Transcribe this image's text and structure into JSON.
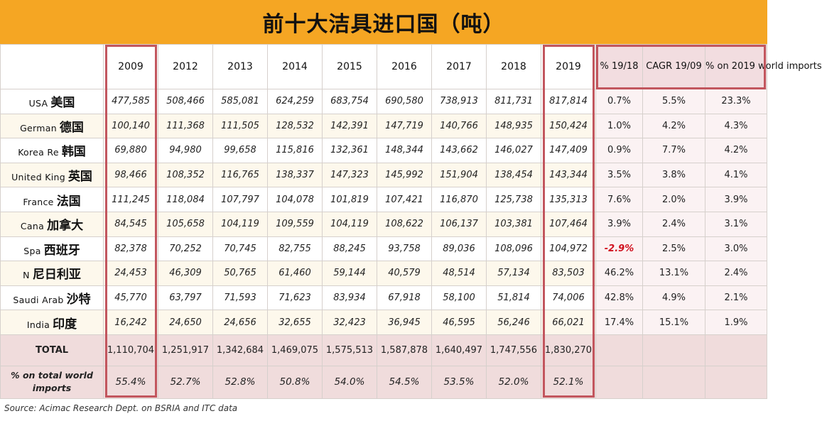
{
  "title": "前十大洁具进口国（吨）",
  "chart_data": {
    "type": "table",
    "title": "前十大洁具进口国（吨）",
    "columns": [
      "2009",
      "2012",
      "2013",
      "2014",
      "2015",
      "2016",
      "2017",
      "2018",
      "2019",
      "% 19/18",
      "CAGR 19/09",
      "% on 2019 world imports"
    ],
    "rows": [
      {
        "en": "USA",
        "cn": "美国",
        "values": [
          "477,585",
          "508,466",
          "585,081",
          "624,259",
          "683,754",
          "690,580",
          "738,913",
          "811,731",
          "817,814"
        ],
        "rates": [
          "0.7%",
          "5.5%",
          "23.3%"
        ]
      },
      {
        "en": "German",
        "cn": "德国",
        "values": [
          "100,140",
          "111,368",
          "111,505",
          "128,532",
          "142,391",
          "147,719",
          "140,766",
          "148,935",
          "150,424"
        ],
        "rates": [
          "1.0%",
          "4.2%",
          "4.3%"
        ]
      },
      {
        "en": "Korea Re",
        "cn": "韩国",
        "values": [
          "69,880",
          "94,980",
          "99,658",
          "115,816",
          "132,361",
          "148,344",
          "143,662",
          "146,027",
          "147,409"
        ],
        "rates": [
          "0.9%",
          "7.7%",
          "4.2%"
        ]
      },
      {
        "en": "United King",
        "cn": "英国",
        "values": [
          "98,466",
          "108,352",
          "116,765",
          "138,337",
          "147,323",
          "145,992",
          "151,904",
          "138,454",
          "143,344"
        ],
        "rates": [
          "3.5%",
          "3.8%",
          "4.1%"
        ]
      },
      {
        "en": "France",
        "cn": "法国",
        "values": [
          "111,245",
          "118,084",
          "107,797",
          "104,078",
          "101,819",
          "107,421",
          "116,870",
          "125,738",
          "135,313"
        ],
        "rates": [
          "7.6%",
          "2.0%",
          "3.9%"
        ]
      },
      {
        "en": "Cana",
        "cn": "加拿大",
        "values": [
          "84,545",
          "105,658",
          "104,119",
          "109,559",
          "104,119",
          "108,622",
          "106,137",
          "103,381",
          "107,464"
        ],
        "rates": [
          "3.9%",
          "2.4%",
          "3.1%"
        ]
      },
      {
        "en": "Spa",
        "cn": "西班牙",
        "values": [
          "82,378",
          "70,252",
          "70,745",
          "82,755",
          "88,245",
          "93,758",
          "89,036",
          "108,096",
          "104,972"
        ],
        "rates": [
          "-2.9%",
          "2.5%",
          "3.0%"
        ]
      },
      {
        "en": "N",
        "cn": "尼日利亚",
        "values": [
          "24,453",
          "46,309",
          "50,765",
          "61,460",
          "59,144",
          "40,579",
          "48,514",
          "57,134",
          "83,503"
        ],
        "rates": [
          "46.2%",
          "13.1%",
          "2.4%"
        ]
      },
      {
        "en": "Saudi Arab",
        "cn": "沙特",
        "values": [
          "45,770",
          "63,797",
          "71,593",
          "71,623",
          "83,934",
          "67,918",
          "58,100",
          "51,814",
          "74,006"
        ],
        "rates": [
          "42.8%",
          "4.9%",
          "2.1%"
        ]
      },
      {
        "en": "India",
        "cn": "印度",
        "values": [
          "16,242",
          "24,650",
          "24,656",
          "32,655",
          "32,423",
          "36,945",
          "46,595",
          "56,246",
          "66,021"
        ],
        "rates": [
          "17.4%",
          "15.1%",
          "1.9%"
        ]
      }
    ],
    "total": {
      "label": "TOTAL",
      "values": [
        "1,110,704",
        "1,251,917",
        "1,342,684",
        "1,469,075",
        "1,575,513",
        "1,587,878",
        "1,640,497",
        "1,747,556",
        "1,830,270"
      ]
    },
    "share": {
      "label": "% on total world imports",
      "values": [
        "55.4%",
        "52.7%",
        "52.8%",
        "50.8%",
        "54.0%",
        "54.5%",
        "53.5%",
        "52.0%",
        "52.1%"
      ]
    },
    "highlighted_columns": [
      "2009",
      "2019"
    ],
    "highlight_color": "#c2565e",
    "negative_color": "#d0101e",
    "header_color": "#f5a623"
  },
  "source": "Source: Acimac Research Dept. on BSRIA and ITC data"
}
